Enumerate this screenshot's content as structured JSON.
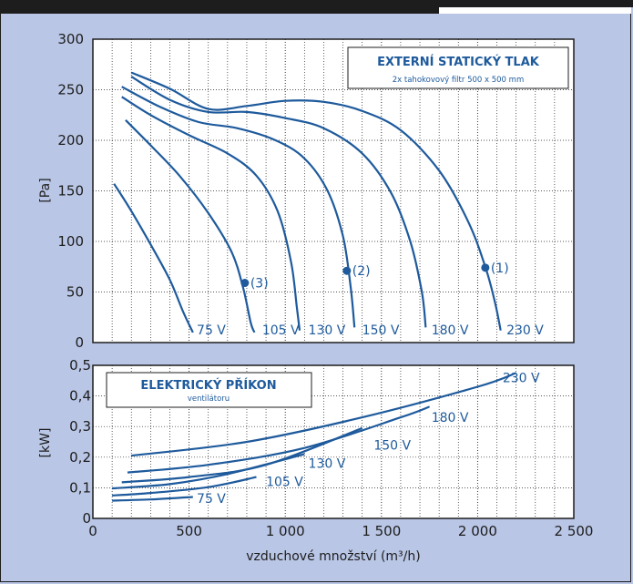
{
  "chart_data": [
    {
      "type": "line",
      "title": "EXTERNÍ STATICKÝ TLAK",
      "subtitle": "2x tahokovový filtr 500 x 500 mm",
      "ylabel": "[Pa]",
      "xlim": [
        0,
        2500
      ],
      "ylim": [
        0,
        300
      ],
      "yticks": [
        "0",
        "50",
        "100",
        "150",
        "200",
        "250",
        "300"
      ],
      "grid": true,
      "series": [
        {
          "name": "75V",
          "points": [
            [
              110,
              157
            ],
            [
              200,
              130
            ],
            [
              300,
              97
            ],
            [
              400,
              62
            ],
            [
              470,
              30
            ],
            [
              520,
              10
            ]
          ]
        },
        {
          "name": "105V",
          "points": [
            [
              170,
              220
            ],
            [
              300,
              195
            ],
            [
              450,
              165
            ],
            [
              600,
              128
            ],
            [
              720,
              90
            ],
            [
              780,
              55
            ],
            [
              820,
              20
            ],
            [
              840,
              10
            ]
          ]
        },
        {
          "name": "130V",
          "points": [
            [
              150,
              243
            ],
            [
              300,
              225
            ],
            [
              500,
              205
            ],
            [
              700,
              187
            ],
            [
              850,
              165
            ],
            [
              960,
              130
            ],
            [
              1030,
              80
            ],
            [
              1060,
              35
            ],
            [
              1075,
              12
            ]
          ]
        },
        {
          "name": "150V",
          "points": [
            [
              150,
              253
            ],
            [
              350,
              233
            ],
            [
              550,
              218
            ],
            [
              750,
              212
            ],
            [
              950,
              200
            ],
            [
              1100,
              182
            ],
            [
              1220,
              150
            ],
            [
              1300,
              105
            ],
            [
              1340,
              55
            ],
            [
              1360,
              15
            ]
          ]
        },
        {
          "name": "180V",
          "points": [
            [
              200,
              263
            ],
            [
              400,
              240
            ],
            [
              600,
              228
            ],
            [
              800,
              228
            ],
            [
              1000,
              222
            ],
            [
              1200,
              212
            ],
            [
              1400,
              187
            ],
            [
              1550,
              148
            ],
            [
              1650,
              100
            ],
            [
              1710,
              50
            ],
            [
              1730,
              15
            ]
          ]
        },
        {
          "name": "230V",
          "points": [
            [
              200,
              267
            ],
            [
              400,
              251
            ],
            [
              600,
              231
            ],
            [
              800,
              234
            ],
            [
              1000,
              239
            ],
            [
              1200,
              238
            ],
            [
              1400,
              229
            ],
            [
              1600,
              210
            ],
            [
              1800,
              170
            ],
            [
              1950,
              120
            ],
            [
              2040,
              75
            ],
            [
              2090,
              40
            ],
            [
              2120,
              12
            ]
          ]
        }
      ],
      "labels": [
        "75 V",
        "105 V",
        "130 V",
        "150 V",
        "180 V",
        "230 V"
      ],
      "markers": [
        {
          "label": "(1)",
          "x": 2040,
          "y": 74
        },
        {
          "label": "(2)",
          "x": 1320,
          "y": 71
        },
        {
          "label": "(3)",
          "x": 790,
          "y": 59
        }
      ],
      "legend_box": "top-right"
    },
    {
      "type": "line",
      "title": "ELEKTRICKÝ PŘÍKON",
      "subtitle": "ventilátoru",
      "ylabel": "[kW]",
      "xlabel": "vzduchové množství (m³/h)",
      "xlim": [
        0,
        2500
      ],
      "ylim": [
        0,
        0.5
      ],
      "xticks": [
        "0",
        "500",
        "1 000",
        "1 500",
        "2 000",
        "2 500"
      ],
      "yticks": [
        "0",
        "0,1",
        "0,2",
        "0,3",
        "0,4",
        "0,5"
      ],
      "grid": true,
      "series": [
        {
          "name": "75V",
          "points": [
            [
              100,
              0.058
            ],
            [
              300,
              0.062
            ],
            [
              520,
              0.07
            ]
          ]
        },
        {
          "name": "105V",
          "points": [
            [
              100,
              0.075
            ],
            [
              300,
              0.083
            ],
            [
              600,
              0.102
            ],
            [
              850,
              0.135
            ]
          ]
        },
        {
          "name": "130V",
          "points": [
            [
              100,
              0.098
            ],
            [
              400,
              0.112
            ],
            [
              700,
              0.145
            ],
            [
              1100,
              0.21
            ]
          ]
        },
        {
          "name": "150V",
          "points": [
            [
              150,
              0.118
            ],
            [
              500,
              0.135
            ],
            [
              900,
              0.175
            ],
            [
              1400,
              0.295
            ]
          ]
        },
        {
          "name": "180V",
          "points": [
            [
              180,
              0.15
            ],
            [
              600,
              0.175
            ],
            [
              1100,
              0.23
            ],
            [
              1600,
              0.33
            ],
            [
              1750,
              0.365
            ]
          ]
        },
        {
          "name": "230V",
          "points": [
            [
              200,
              0.205
            ],
            [
              800,
              0.25
            ],
            [
              1400,
              0.33
            ],
            [
              2000,
              0.43
            ],
            [
              2200,
              0.475
            ]
          ]
        }
      ],
      "labels": [
        "75 V",
        "105 V",
        "130 V",
        "150 V",
        "180 V",
        "230 V"
      ],
      "legend_box": "top-left"
    }
  ]
}
